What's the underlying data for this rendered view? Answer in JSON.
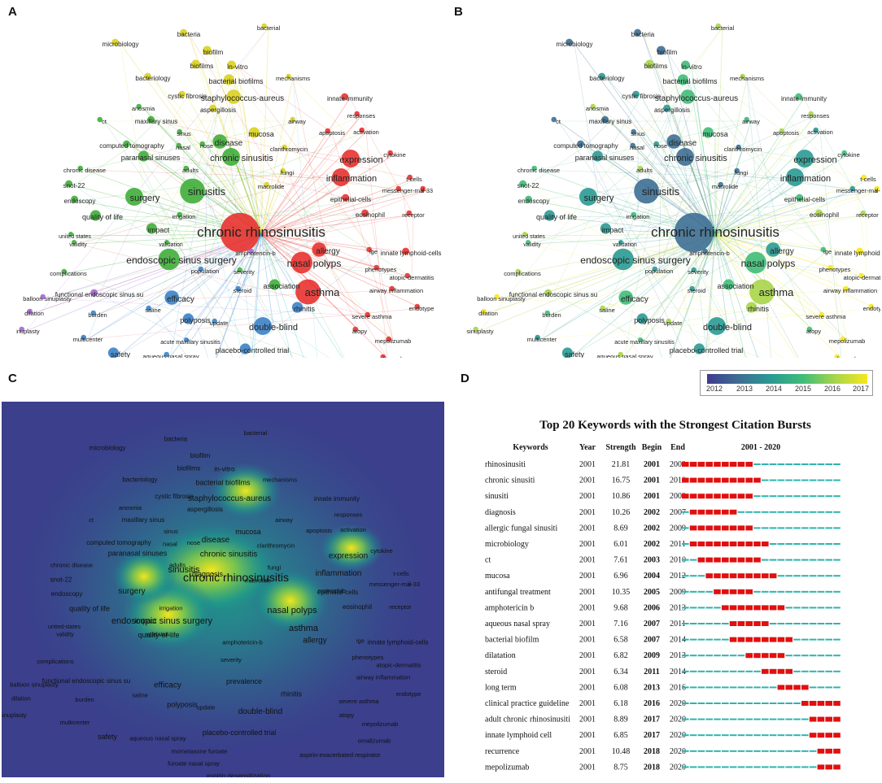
{
  "panels": {
    "a": {
      "letter": "A"
    },
    "b": {
      "letter": "B"
    },
    "c": {
      "letter": "C"
    },
    "d": {
      "letter": "D"
    }
  },
  "network_keywords": [
    "bacteria",
    "biofilm",
    "bacterial",
    "microbiology",
    "in-vitro",
    "biofilms",
    "bacteriology",
    "bacterial biofilms",
    "mechanisms",
    "cystic fibrosis",
    "staphylococcus-aureus",
    "anosmia",
    "aspergillosis",
    "innate immunity",
    "maxillary sinus",
    "ct",
    "airway",
    "responses",
    "sinus",
    "mucosa",
    "apoptosis",
    "activation",
    "computed tomography",
    "nasal",
    "nose",
    "disease",
    "clarithromycin",
    "paranasal sinuses",
    "cytokine",
    "chronic sinusitis",
    "expression",
    "chronic disease",
    "adults",
    "fungi",
    "snot-22",
    "macrolide",
    "inflammation",
    "t-cells",
    "il-33",
    "messenger-rna",
    "endoscopy",
    "sinusitis",
    "surgery",
    "epithelial-cells",
    "eosinophil",
    "quality of life",
    "irrigation",
    "receptor",
    "impact",
    "chronic rhinosinusitis",
    "united states",
    "validation",
    "validity",
    "amphotericin-b",
    "allergy",
    "ige",
    "innate lymphoid-cells",
    "endoscopic sinus surgery",
    "nasal polyps",
    "complications",
    "severity",
    "phenotypes",
    "atopic-dermatitis",
    "population",
    "balloon sinuplasty",
    "functional endoscopic sinus su",
    "steroid",
    "association",
    "asthma",
    "airway inflammation",
    "efficacy",
    "rhinitis",
    "dilation",
    "burden",
    "saline",
    "polyposis",
    "endotype",
    "update",
    "double-blind",
    "severe asthma",
    "sinuplasty",
    "multicenter",
    "atopy",
    "mepolizumab",
    "safety",
    "acute maxillary sinusitis",
    "aqueous nasal spray",
    "placebo-controlled trial",
    "mometasone furoate",
    "omalizumab",
    "aspirin-exacerbated respirator",
    "furoate nasal spray",
    "aspirin desensitization",
    "natural-history",
    "desensitization"
  ],
  "density_keywords": [
    "bacteria",
    "biofilm",
    "bacterial",
    "microbiology",
    "biofilms",
    "in-vitro",
    "bacteriology",
    "bacterial biofilms",
    "mechanisms",
    "cystic fibrosis",
    "staphylococcus-aureus",
    "anosmia",
    "aspergillosis",
    "innate immunity",
    "ct",
    "maxillary sinus",
    "airway",
    "responses",
    "sinus",
    "mucosa",
    "apoptosis",
    "activation",
    "computed tomography",
    "nasal",
    "nose",
    "disease",
    "clarithromycin",
    "paranasal sinuses",
    "cytokine",
    "chronic disease",
    "adults",
    "chronic sinusitis",
    "fungi",
    "inflammation",
    "expression",
    "macrolide",
    "snot-22",
    "t-cells",
    "messenger-rna",
    "il-33",
    "epithelial-cells",
    "endoscopy",
    "sinusitis",
    "surgery",
    "diagnosis",
    "eosinophil",
    "quality of life",
    "irrigation",
    "chronic rhinosinusitis",
    "eosinophils",
    "receptor",
    "impact",
    "united-states",
    "validation",
    "amphotericin-b",
    "allergy",
    "ige",
    "innate lymphoid-cells",
    "validity",
    "endoscopic sinus surgery",
    "nasal polyps",
    "complications",
    "severity",
    "phenotypes",
    "atopic-dermatitis",
    "quality-of-life",
    "asthma",
    "airway inflammation",
    "functional endoscopic sinus su",
    "balloon sinuplasty",
    "prevalence",
    "efficacy",
    "rhinitis",
    "dilation",
    "saline",
    "burden",
    "severe asthma",
    "endotype",
    "polyposis",
    "update",
    "double-blind",
    "atopy",
    "sinuplasty",
    "multicenter",
    "mepolizumab",
    "placebo-controlled trial",
    "safety",
    "aqueous nasal spray",
    "omalizumab",
    "mometasone furoate",
    "aspirin-exacerbated respirator",
    "furoate nasal spray",
    "aspirin desensitization",
    "natural-history",
    "desensitization"
  ],
  "colorbar": {
    "ticks": [
      "2012",
      "2013",
      "2014",
      "2015",
      "2016",
      "2017"
    ],
    "colors": [
      "#3e3c8e",
      "#3e6f93",
      "#2a9a93",
      "#3fbd78",
      "#a8d54a",
      "#f6e81d"
    ]
  },
  "chart_data": [
    {
      "type": "network",
      "panel": "A",
      "title": "Keyword co-occurrence network (clusters)",
      "clusters": {
        "red": [
          "chronic rhinosinusitis",
          "nasal polyps",
          "asthma",
          "inflammation",
          "expression",
          "allergy",
          "eosinophil",
          "innate lymphoid-cells",
          "il-33",
          "t-cells",
          "airway inflammation",
          "severe asthma",
          "mepolizumab",
          "omalizumab",
          "phenotypes",
          "endotype",
          "atopy",
          "atopic-dermatitis",
          "cytokine",
          "receptor",
          "messenger-rna",
          "epithelial-cells",
          "ige",
          "innate immunity",
          "responses",
          "apoptosis",
          "activation"
        ],
        "green": [
          "sinusitis",
          "surgery",
          "endoscopic sinus surgery",
          "quality of life",
          "chronic sinusitis",
          "disease",
          "paranasal sinuses",
          "endoscopy",
          "computed tomography",
          "snot-22",
          "chronic disease",
          "impact",
          "outcomes",
          "validation",
          "validity",
          "united states",
          "adults",
          "irrigation",
          "complications",
          "association",
          "severity"
        ],
        "blue": [
          "double-blind",
          "efficacy",
          "placebo-controlled trial",
          "polyposis",
          "rhinitis",
          "safety",
          "steroid",
          "mometasone furoate",
          "aqueous nasal spray",
          "furoate nasal spray",
          "saline",
          "update",
          "multicenter",
          "burden",
          "population",
          "acute maxillary sinusitis"
        ],
        "yellow": [
          "biofilm",
          "bacterial biofilms",
          "staphylococcus-aureus",
          "bacteria",
          "biofilms",
          "in-vitro",
          "bacterial",
          "microbiology",
          "bacteriology",
          "mechanisms",
          "cystic fibrosis",
          "aspergillosis",
          "mucosa",
          "clarithromycin",
          "macrolide",
          "fungi",
          "airway"
        ],
        "purple": [
          "balloon sinuplasty",
          "dilation",
          "sinuplasty",
          "functional endoscopic sinus su",
          "amphotericin-b"
        ],
        "cyan": [
          "aspirin-exacerbated respirator",
          "aspirin desensitization",
          "desensitization",
          "natural-history"
        ]
      }
    },
    {
      "type": "network",
      "panel": "B",
      "title": "Keyword overlay network (average publication year)",
      "color_scale": {
        "min": 2012,
        "max": 2017
      }
    },
    {
      "type": "heatmap",
      "panel": "C",
      "title": "Keyword density visualization",
      "hotspots": [
        "chronic rhinosinusitis",
        "endoscopic sinus surgery",
        "nasal polyps",
        "asthma",
        "sinusitis"
      ]
    },
    {
      "type": "table",
      "panel": "D",
      "title": "Top 20 Keywords with the Strongest Citation Bursts",
      "columns": [
        "Keywords",
        "Year",
        "Strength",
        "Begin",
        "End",
        "2001 - 2020"
      ],
      "x_range": [
        2001,
        2020
      ],
      "rows": [
        {
          "keyword": "rhinosinusiti",
          "year": "2001",
          "strength": "21.81",
          "begin": "2001",
          "end": "2009"
        },
        {
          "keyword": "chronic sinusiti",
          "year": "2001",
          "strength": "16.75",
          "begin": "2001",
          "end": "2010"
        },
        {
          "keyword": "sinusiti",
          "year": "2001",
          "strength": "10.86",
          "begin": "2001",
          "end": "2009"
        },
        {
          "keyword": "diagnosis",
          "year": "2001",
          "strength": "10.26",
          "begin": "2002",
          "end": "2007"
        },
        {
          "keyword": "allergic fungal sinusiti",
          "year": "2001",
          "strength": "8.69",
          "begin": "2002",
          "end": "2009"
        },
        {
          "keyword": "microbiology",
          "year": "2001",
          "strength": "6.01",
          "begin": "2002",
          "end": "2011"
        },
        {
          "keyword": "ct",
          "year": "2001",
          "strength": "7.61",
          "begin": "2003",
          "end": "2010"
        },
        {
          "keyword": "mucosa",
          "year": "2001",
          "strength": "6.96",
          "begin": "2004",
          "end": "2012"
        },
        {
          "keyword": "antifungal treatment",
          "year": "2001",
          "strength": "10.35",
          "begin": "2005",
          "end": "2009"
        },
        {
          "keyword": "amphotericin b",
          "year": "2001",
          "strength": "9.68",
          "begin": "2006",
          "end": "2013"
        },
        {
          "keyword": "aqueous nasal spray",
          "year": "2001",
          "strength": "7.16",
          "begin": "2007",
          "end": "2011"
        },
        {
          "keyword": "bacterial biofilm",
          "year": "2001",
          "strength": "6.58",
          "begin": "2007",
          "end": "2014"
        },
        {
          "keyword": "dilatation",
          "year": "2001",
          "strength": "6.82",
          "begin": "2009",
          "end": "2013"
        },
        {
          "keyword": "steroid",
          "year": "2001",
          "strength": "6.34",
          "begin": "2011",
          "end": "2014"
        },
        {
          "keyword": "long term",
          "year": "2001",
          "strength": "6.08",
          "begin": "2013",
          "end": "2016"
        },
        {
          "keyword": "clinical practice guideline",
          "year": "2001",
          "strength": "6.18",
          "begin": "2016",
          "end": "2020"
        },
        {
          "keyword": "adult chronic rhinosinusiti",
          "year": "2001",
          "strength": "8.89",
          "begin": "2017",
          "end": "2020"
        },
        {
          "keyword": "innate lymphoid cell",
          "year": "2001",
          "strength": "6.85",
          "begin": "2017",
          "end": "2020"
        },
        {
          "keyword": "recurrence",
          "year": "2001",
          "strength": "10.48",
          "begin": "2018",
          "end": "2020"
        },
        {
          "keyword": "mepolizumab",
          "year": "2001",
          "strength": "8.75",
          "begin": "2018",
          "end": "2020"
        }
      ],
      "burst_color": "#e01010",
      "base_color": "#2fb3b0"
    }
  ]
}
